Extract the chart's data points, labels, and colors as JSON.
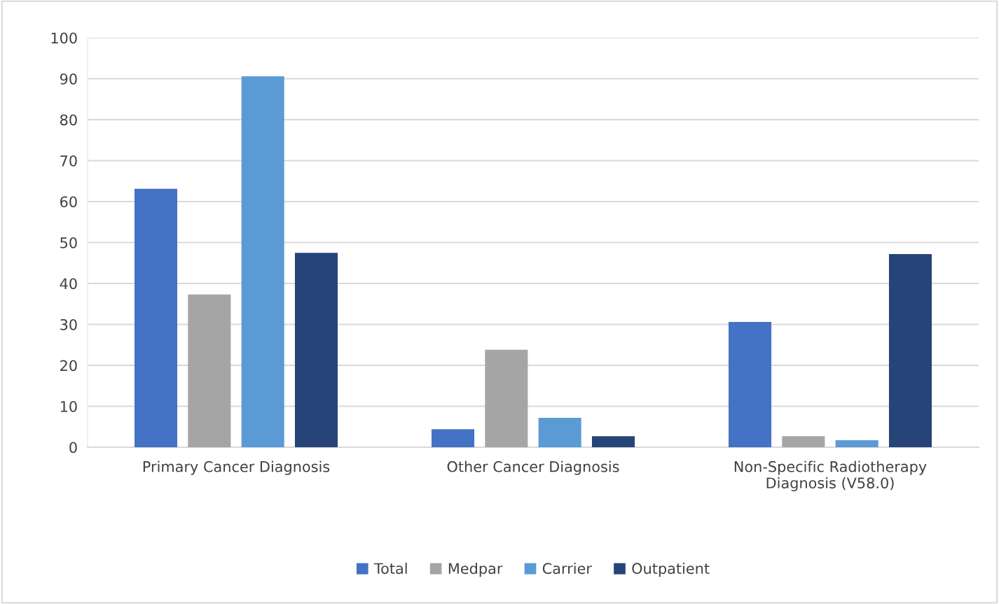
{
  "chart_data": {
    "type": "bar",
    "categories": [
      "Primary Cancer Diagnosis",
      "Other Cancer Diagnosis",
      "Non-Specific Radiotherapy\nDiagnosis (V58.0)"
    ],
    "series": [
      {
        "name": "Total",
        "color": "#4472c4",
        "values": [
          63.1,
          4.4,
          30.6
        ]
      },
      {
        "name": "Medpar",
        "color": "#a5a5a5",
        "values": [
          37.3,
          23.8,
          2.7
        ]
      },
      {
        "name": "Carrier",
        "color": "#5b9bd5",
        "values": [
          90.6,
          7.2,
          1.7
        ]
      },
      {
        "name": "Outpatient",
        "color": "#264478",
        "values": [
          47.5,
          2.7,
          47.2
        ]
      }
    ],
    "ylim": [
      0,
      100
    ],
    "yticks": [
      0,
      10,
      20,
      30,
      40,
      50,
      60,
      70,
      80,
      90,
      100
    ],
    "grid": "y",
    "legend": "bottom"
  }
}
